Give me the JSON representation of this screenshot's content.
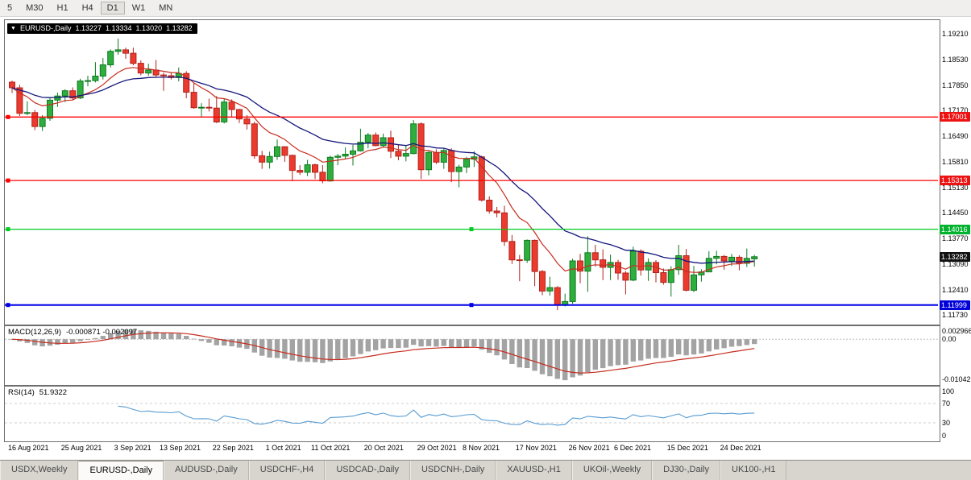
{
  "toolbar": {
    "timeframes": [
      {
        "label": "5",
        "active": false
      },
      {
        "label": "M30",
        "active": false
      },
      {
        "label": "H1",
        "active": false
      },
      {
        "label": "H4",
        "active": false
      },
      {
        "label": "D1",
        "active": true
      },
      {
        "label": "W1",
        "active": false
      },
      {
        "label": "MN",
        "active": false
      }
    ]
  },
  "chart_header": {
    "dropdown_icon": "▼",
    "symbol": "EURUSD-,Daily",
    "open": "1.13227",
    "high": "1.13334",
    "low": "1.13020",
    "close": "1.13282"
  },
  "price_scale": {
    "ticks": [
      "1.19210",
      "1.18530",
      "1.17850",
      "1.17170",
      "1.16490",
      "1.15810",
      "1.15130",
      "1.14450",
      "1.13770",
      "1.13090",
      "1.12410",
      "1.11730"
    ]
  },
  "levels": [
    {
      "value": 1.17001,
      "label": "1.17001",
      "line_color": "#ff0000",
      "label_bg": "#ee1111",
      "label_fg": "#ffffff",
      "width": 1.3,
      "handles": [
        "left"
      ]
    },
    {
      "value": 1.15313,
      "label": "1.15313",
      "line_color": "#ff0000",
      "label_bg": "#ee1111",
      "label_fg": "#ffffff",
      "width": 1.3,
      "handles": [
        "left"
      ]
    },
    {
      "value": 1.14016,
      "label": "1.14016",
      "line_color": "#00cc22",
      "label_bg": "#00b22d",
      "label_fg": "#ffffff",
      "width": 1.3,
      "handles": [
        "left",
        "center"
      ]
    },
    {
      "value": 1.11999,
      "label": "1.11999",
      "line_color": "#0000e6",
      "label_bg": "#0000d9",
      "label_fg": "#ffffff",
      "width": 2,
      "handles": [
        "left",
        "center"
      ]
    }
  ],
  "current_price": {
    "value": 1.13282,
    "label": "1.13282",
    "label_bg": "#111111",
    "label_fg": "#ffffff"
  },
  "indicators": {
    "macd": {
      "name": "MACD(12,26,9)",
      "values": "-0.000871 -0.002097",
      "fast": 12,
      "slow": 26,
      "signal": 9,
      "ymax": 0.0033,
      "ymin": -0.0112,
      "scale": [
        {
          "v": 0.002966,
          "label": "0.002966"
        },
        {
          "v": 0,
          "label": "0.00"
        },
        {
          "v": -0.01042,
          "label": "-0.01042"
        }
      ]
    },
    "rsi": {
      "name": "RSI(14)",
      "value": "51.9322",
      "period": 14,
      "scale": [
        {
          "v": 100,
          "label": "100"
        },
        {
          "v": 70,
          "label": "70"
        },
        {
          "v": 30,
          "label": "30"
        },
        {
          "v": 0,
          "label": "0"
        }
      ],
      "guides": [
        70,
        30
      ]
    }
  },
  "x_axis": {
    "labels": [
      {
        "text": "16 Aug 2021",
        "idx": 0
      },
      {
        "text": "25 Aug 2021",
        "idx": 7
      },
      {
        "text": "3 Sep 2021",
        "idx": 14
      },
      {
        "text": "13 Sep 2021",
        "idx": 20
      },
      {
        "text": "22 Sep 2021",
        "idx": 27
      },
      {
        "text": "1 Oct 2021",
        "idx": 34
      },
      {
        "text": "11 Oct 2021",
        "idx": 40
      },
      {
        "text": "20 Oct 2021",
        "idx": 47
      },
      {
        "text": "29 Oct 2021",
        "idx": 54
      },
      {
        "text": "8 Nov 2021",
        "idx": 60
      },
      {
        "text": "17 Nov 2021",
        "idx": 67
      },
      {
        "text": "26 Nov 2021",
        "idx": 74
      },
      {
        "text": "6 Dec 2021",
        "idx": 80
      },
      {
        "text": "15 Dec 2021",
        "idx": 87
      },
      {
        "text": "24 Dec 2021",
        "idx": 94
      }
    ]
  },
  "tabs": [
    {
      "label": "USDX,Weekly",
      "active": false
    },
    {
      "label": "EURUSD-,Daily",
      "active": true
    },
    {
      "label": "AUDUSD-,Daily",
      "active": false
    },
    {
      "label": "USDCHF-,H4",
      "active": false
    },
    {
      "label": "USDCAD-,Daily",
      "active": false
    },
    {
      "label": "USDCNH-,Daily",
      "active": false
    },
    {
      "label": "XAUUSD-,H1",
      "active": false
    },
    {
      "label": "UKOil-,Weekly",
      "active": false
    },
    {
      "label": "DJ30-,Daily",
      "active": false
    },
    {
      "label": "UK100-,H1",
      "active": false
    }
  ],
  "chart_data": {
    "type": "candlestick",
    "symbol": "EURUSD-,Daily",
    "title": "EURUSD-,Daily 1.13227 1.13334 1.13020 1.13282",
    "price_max": 1.1958,
    "price_min": 1.1152,
    "ma_fast_period": 9,
    "ma_slow_period": 21,
    "colors": {
      "up": "#2fae3f",
      "up_border": "#0c7a1e",
      "down": "#ea3b2e",
      "down_border": "#b2221a",
      "ma_fast": "#c62d1f",
      "ma_slow": "#16167d",
      "macd_bar": "#a3a3a3",
      "macd_signal": "#c62d1f",
      "rsi_line": "#569bd2"
    },
    "candles": [
      [
        1.1793,
        1.1797,
        1.1764,
        1.1778
      ],
      [
        1.1778,
        1.1786,
        1.1703,
        1.171
      ],
      [
        1.171,
        1.1742,
        1.1705,
        1.1712
      ],
      [
        1.1712,
        1.1719,
        1.1665,
        1.1675
      ],
      [
        1.1675,
        1.1705,
        1.1663,
        1.1697
      ],
      [
        1.1697,
        1.175,
        1.169,
        1.1745
      ],
      [
        1.1745,
        1.1765,
        1.1727,
        1.1756
      ],
      [
        1.1756,
        1.1774,
        1.174,
        1.177
      ],
      [
        1.177,
        1.1779,
        1.1745,
        1.1751
      ],
      [
        1.1751,
        1.1802,
        1.1748,
        1.1796
      ],
      [
        1.1796,
        1.181,
        1.1782,
        1.1797
      ],
      [
        1.1797,
        1.1846,
        1.1792,
        1.1809
      ],
      [
        1.1809,
        1.1857,
        1.18,
        1.1839
      ],
      [
        1.1839,
        1.188,
        1.1832,
        1.1875
      ],
      [
        1.1875,
        1.1909,
        1.1866,
        1.1879
      ],
      [
        1.1879,
        1.1885,
        1.1855,
        1.187
      ],
      [
        1.187,
        1.1885,
        1.1838,
        1.1843
      ],
      [
        1.1843,
        1.1851,
        1.1811,
        1.1817
      ],
      [
        1.1817,
        1.1842,
        1.181,
        1.1825
      ],
      [
        1.1825,
        1.1852,
        1.1805,
        1.1812
      ],
      [
        1.1812,
        1.1818,
        1.177,
        1.181
      ],
      [
        1.181,
        1.1819,
        1.18,
        1.1805
      ],
      [
        1.1805,
        1.1832,
        1.1795,
        1.1816
      ],
      [
        1.1816,
        1.1822,
        1.175,
        1.1766
      ],
      [
        1.1766,
        1.179,
        1.1722,
        1.1725
      ],
      [
        1.1725,
        1.1737,
        1.17,
        1.1726
      ],
      [
        1.1726,
        1.1749,
        1.1715,
        1.1724
      ],
      [
        1.1724,
        1.1756,
        1.1684,
        1.1687
      ],
      [
        1.1687,
        1.175,
        1.1683,
        1.174
      ],
      [
        1.174,
        1.1747,
        1.1701,
        1.172
      ],
      [
        1.172,
        1.1722,
        1.1684,
        1.1695
      ],
      [
        1.1695,
        1.1705,
        1.1667,
        1.1682
      ],
      [
        1.1682,
        1.1688,
        1.1589,
        1.1597
      ],
      [
        1.1597,
        1.161,
        1.1562,
        1.158
      ],
      [
        1.158,
        1.1608,
        1.1563,
        1.1595
      ],
      [
        1.1595,
        1.164,
        1.1586,
        1.1621
      ],
      [
        1.1621,
        1.1622,
        1.1581,
        1.1598
      ],
      [
        1.1598,
        1.16,
        1.1529,
        1.1558
      ],
      [
        1.1558,
        1.1572,
        1.1546,
        1.1553
      ],
      [
        1.1553,
        1.1586,
        1.1543,
        1.1573
      ],
      [
        1.1573,
        1.1576,
        1.1535,
        1.1553
      ],
      [
        1.1553,
        1.1572,
        1.1524,
        1.153
      ],
      [
        1.153,
        1.1597,
        1.1528,
        1.1593
      ],
      [
        1.1593,
        1.1602,
        1.1572,
        1.1596
      ],
      [
        1.1596,
        1.1619,
        1.1588,
        1.1601
      ],
      [
        1.1601,
        1.1626,
        1.1571,
        1.161
      ],
      [
        1.161,
        1.1669,
        1.1608,
        1.1633
      ],
      [
        1.1633,
        1.1658,
        1.1617,
        1.1652
      ],
      [
        1.1652,
        1.1659,
        1.1622,
        1.1624
      ],
      [
        1.1624,
        1.1656,
        1.162,
        1.1645
      ],
      [
        1.1645,
        1.1664,
        1.1591,
        1.1609
      ],
      [
        1.1609,
        1.1626,
        1.1585,
        1.1596
      ],
      [
        1.1596,
        1.1626,
        1.1582,
        1.1603
      ],
      [
        1.1603,
        1.1692,
        1.1601,
        1.1682
      ],
      [
        1.1682,
        1.1686,
        1.1535,
        1.156
      ],
      [
        1.156,
        1.1609,
        1.1545,
        1.1606
      ],
      [
        1.1606,
        1.1614,
        1.1575,
        1.158
      ],
      [
        1.158,
        1.1616,
        1.1562,
        1.1611
      ],
      [
        1.1611,
        1.1617,
        1.1527,
        1.1555
      ],
      [
        1.1555,
        1.1573,
        1.1513,
        1.1567
      ],
      [
        1.1567,
        1.1594,
        1.1551,
        1.1588
      ],
      [
        1.1588,
        1.1609,
        1.1567,
        1.1594
      ],
      [
        1.1594,
        1.1597,
        1.1475,
        1.1479
      ],
      [
        1.1479,
        1.1489,
        1.1443,
        1.145
      ],
      [
        1.145,
        1.1461,
        1.1433,
        1.1445
      ],
      [
        1.1445,
        1.1464,
        1.1357,
        1.1369
      ],
      [
        1.1369,
        1.1386,
        1.1309,
        1.132
      ],
      [
        1.132,
        1.1333,
        1.1263,
        1.1319
      ],
      [
        1.1319,
        1.1374,
        1.1312,
        1.1372
      ],
      [
        1.1372,
        1.1374,
        1.125,
        1.1289
      ],
      [
        1.1289,
        1.1293,
        1.1226,
        1.1237
      ],
      [
        1.1237,
        1.1275,
        1.1225,
        1.1246
      ],
      [
        1.1246,
        1.125,
        1.1186,
        1.12
      ],
      [
        1.12,
        1.123,
        1.1196,
        1.1209
      ],
      [
        1.1209,
        1.1323,
        1.1203,
        1.1317
      ],
      [
        1.1317,
        1.1336,
        1.1258,
        1.129
      ],
      [
        1.129,
        1.1383,
        1.1235,
        1.1339
      ],
      [
        1.1339,
        1.136,
        1.1302,
        1.132
      ],
      [
        1.132,
        1.1348,
        1.1266,
        1.13
      ],
      [
        1.13,
        1.1334,
        1.1266,
        1.1313
      ],
      [
        1.1313,
        1.132,
        1.1267,
        1.1285
      ],
      [
        1.1285,
        1.129,
        1.1228,
        1.1266
      ],
      [
        1.1266,
        1.1355,
        1.1263,
        1.1343
      ],
      [
        1.1343,
        1.1348,
        1.1278,
        1.1293
      ],
      [
        1.1293,
        1.1324,
        1.1264,
        1.1313
      ],
      [
        1.1313,
        1.1319,
        1.126,
        1.1286
      ],
      [
        1.1286,
        1.1297,
        1.1254,
        1.126
      ],
      [
        1.126,
        1.1303,
        1.1222,
        1.1294
      ],
      [
        1.1294,
        1.136,
        1.128,
        1.1331
      ],
      [
        1.1331,
        1.1349,
        1.1236,
        1.1239
      ],
      [
        1.1239,
        1.1304,
        1.1234,
        1.128
      ],
      [
        1.128,
        1.1295,
        1.1262,
        1.1288
      ],
      [
        1.1288,
        1.1343,
        1.1287,
        1.1324
      ],
      [
        1.1324,
        1.1344,
        1.1308,
        1.1329
      ],
      [
        1.1329,
        1.1333,
        1.1294,
        1.1317
      ],
      [
        1.1317,
        1.1336,
        1.1304,
        1.1327
      ],
      [
        1.1327,
        1.1332,
        1.1292,
        1.1311
      ],
      [
        1.1311,
        1.135,
        1.1301,
        1.1324
      ],
      [
        1.13227,
        1.13334,
        1.1302,
        1.13282
      ]
    ]
  }
}
